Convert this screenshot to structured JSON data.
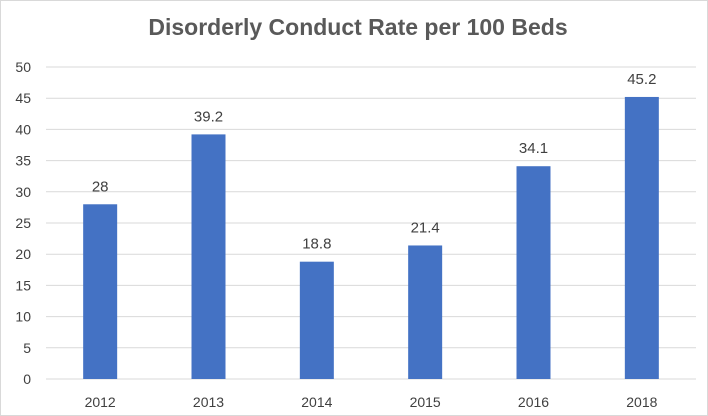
{
  "chart_data": {
    "type": "bar",
    "title": "Disorderly Conduct Rate per 100 Beds",
    "categories": [
      "2012",
      "2013",
      "2014",
      "2015",
      "2016",
      "2018"
    ],
    "values": [
      28,
      39.2,
      18.8,
      21.4,
      34.1,
      45.2
    ],
    "data_labels": [
      "28",
      "39.2",
      "18.8",
      "21.4",
      "34.1",
      "45.2"
    ],
    "y_ticks": [
      "0",
      "5",
      "10",
      "15",
      "20",
      "25",
      "30",
      "35",
      "40",
      "45",
      "50"
    ],
    "xlabel": "",
    "ylabel": "",
    "ylim": [
      0,
      50
    ],
    "ytick_step": 5,
    "grid": true,
    "legend": "none",
    "bar_color": "#4472C4",
    "grid_color": "#d9d9d9"
  }
}
